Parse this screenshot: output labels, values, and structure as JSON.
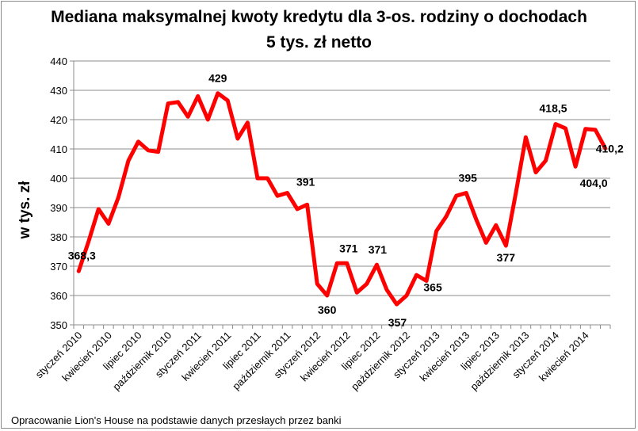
{
  "chart_data": {
    "type": "line",
    "title": "Mediana maksymalnej kwoty kredytu dla 3-os. rodziny o dochodach",
    "subtitle": "5 tys. zł netto",
    "ylabel": "w tys. zł",
    "xlabel": "",
    "ylim": [
      350,
      440
    ],
    "yticks": [
      "350",
      "360",
      "370",
      "380",
      "390",
      "400",
      "410",
      "420",
      "430",
      "440"
    ],
    "grid": true,
    "legend": "none",
    "line_color": "#ff0000",
    "x_tick_labels": [
      "styczeń 2010",
      "kwiecień 2010",
      "lipiec 2010",
      "październik 2010",
      "styczeń 2011",
      "kwiecień 2011",
      "lipiec 2011",
      "październik 2011",
      "styczeń 2012",
      "kwiecień 2012",
      "lipiec 2012",
      "październik 2012",
      "styczeń 2013",
      "kwiecień 2013",
      "lipiec 2013",
      "październik 2013",
      "styczeń 2014",
      "kwiecień 2014"
    ],
    "values": [
      368.3,
      378.5,
      389.5,
      384.5,
      393.5,
      406,
      412.5,
      409.5,
      409,
      425.5,
      426,
      421,
      428,
      420,
      429,
      426.5,
      413.5,
      419,
      400,
      400,
      394,
      395,
      389.5,
      391,
      364,
      360,
      371,
      371,
      361,
      364,
      370.5,
      362,
      357,
      360,
      367,
      365,
      382,
      387,
      394,
      395,
      386,
      378,
      384,
      377,
      395,
      414,
      402,
      406,
      418.5,
      417,
      404,
      416.8,
      416.5,
      410.2
    ],
    "data_labels": [
      {
        "index": 0,
        "text": "368,3"
      },
      {
        "index": 14,
        "text": "429"
      },
      {
        "index": 23,
        "text": "391"
      },
      {
        "index": 25,
        "text": "360"
      },
      {
        "index": 27,
        "text": "371"
      },
      {
        "index": 30,
        "text": "371"
      },
      {
        "index": 32,
        "text": "357"
      },
      {
        "index": 35,
        "text": "365"
      },
      {
        "index": 39,
        "text": "395"
      },
      {
        "index": 43,
        "text": "377"
      },
      {
        "index": 48,
        "text": "418,5"
      },
      {
        "index": 50,
        "text": "404,0"
      },
      {
        "index": 53,
        "text": "410,2"
      }
    ]
  },
  "source_note": "Opracowanie Lion's House na podstawie danych przesłaych przez banki"
}
